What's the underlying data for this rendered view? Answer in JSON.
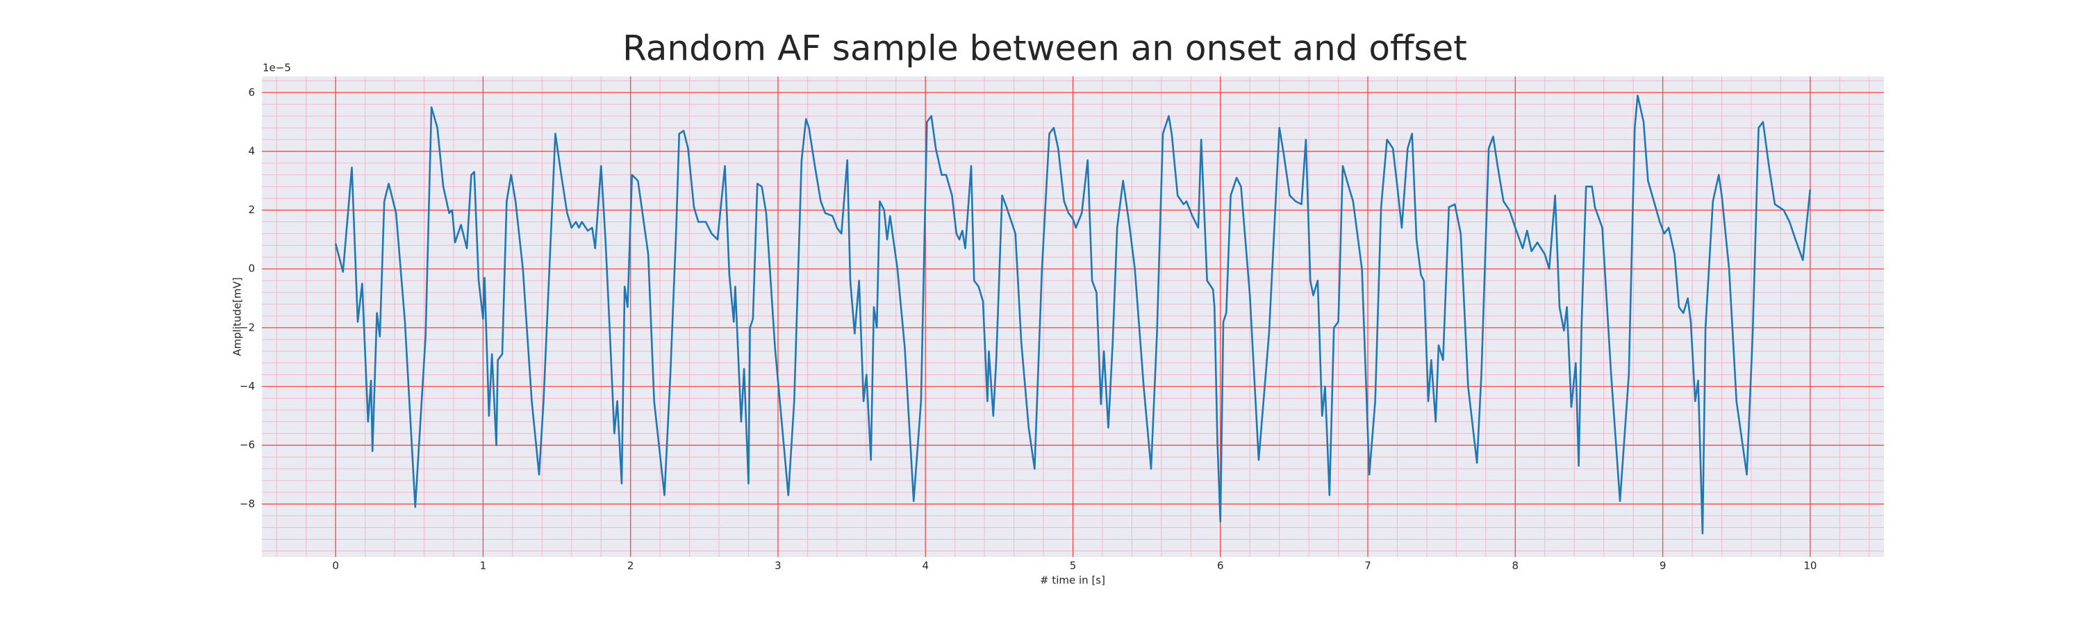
{
  "chart_data": {
    "type": "line",
    "title": "Random AF sample between an onset and offset",
    "xlabel": "# time in [s]",
    "ylabel": "Amplitude[mV]",
    "y_offset_text": "1e−5",
    "xlim": [
      -0.5,
      10.5
    ],
    "ylim": [
      -9.8,
      6.55
    ],
    "xticks": [
      0,
      1,
      2,
      3,
      4,
      5,
      6,
      7,
      8,
      9,
      10
    ],
    "yticks": [
      {
        "value": -8,
        "label": "−8"
      },
      {
        "value": -6,
        "label": "−6"
      },
      {
        "value": -4,
        "label": "−4"
      },
      {
        "value": -2,
        "label": "−2"
      },
      0,
      2,
      4,
      6
    ],
    "xminorticks": [
      -0.4,
      -0.2,
      0,
      0.2,
      0.4,
      0.6,
      0.8,
      1,
      1.2,
      1.4,
      1.6,
      1.8,
      2,
      2.2,
      2.4,
      2.6,
      2.8,
      3,
      3.2,
      3.4,
      3.6,
      3.8,
      4,
      4.2,
      4.4,
      4.6,
      4.8,
      5,
      5.2,
      5.4,
      5.6,
      5.8,
      6,
      6.2,
      6.4,
      6.6,
      6.8,
      7,
      7.2,
      7.4,
      7.6,
      7.8,
      8,
      8.2,
      8.4,
      8.6,
      8.8,
      9,
      9.2,
      9.4,
      9.6,
      9.8,
      10,
      10.2,
      10.4
    ],
    "yminorticks": [
      -9.6,
      -9.2,
      -8.8,
      -8.4,
      -8,
      -7.6,
      -7.2,
      -6.8,
      -6.4,
      -6,
      -5.6,
      -5.2,
      -4.8,
      -4.4,
      -4,
      -3.6,
      -3.2,
      -2.8,
      -2.4,
      -2,
      -1.6,
      -1.2,
      -0.8,
      -0.4,
      0,
      0.4,
      0.8,
      1.2,
      1.6,
      2,
      2.4,
      2.8,
      3.2,
      3.6,
      4,
      4.4,
      4.8,
      5.2,
      5.6,
      6,
      6.4
    ],
    "grid": true,
    "grid_color": "#ff4444",
    "minor_grid_color": "#f4b6c8",
    "background": "#eaeaf2",
    "series": [
      {
        "color": "#1f77b4",
        "x": [
          0,
          0.05,
          0.11,
          0.15,
          0.18,
          0.22,
          0.24,
          0.25,
          0.28,
          0.3,
          0.33,
          0.36,
          0.41,
          0.47,
          0.54,
          0.61,
          0.65,
          0.69,
          0.73,
          0.77,
          0.79,
          0.81,
          0.85,
          0.89,
          0.92,
          0.94,
          0.97,
          1.0,
          1.01,
          1.04,
          1.06,
          1.09,
          1.1,
          1.13,
          1.16,
          1.19,
          1.22,
          1.27,
          1.33,
          1.38,
          1.41,
          1.47,
          1.49,
          1.53,
          1.57,
          1.6,
          1.63,
          1.65,
          1.67,
          1.71,
          1.74,
          1.76,
          1.8,
          1.83,
          1.86,
          1.89,
          1.91,
          1.94,
          1.96,
          1.98,
          2.01,
          2.05,
          2.07,
          2.12,
          2.16,
          2.23,
          2.27,
          2.31,
          2.33,
          2.36,
          2.39,
          2.43,
          2.46,
          2.51,
          2.55,
          2.59,
          2.64,
          2.67,
          2.7,
          2.71,
          2.75,
          2.77,
          2.8,
          2.81,
          2.83,
          2.86,
          2.89,
          2.92,
          2.98,
          3.07,
          3.11,
          3.16,
          3.19,
          3.21,
          3.25,
          3.29,
          3.32,
          3.37,
          3.4,
          3.43,
          3.47,
          3.49,
          3.52,
          3.55,
          3.58,
          3.6,
          3.63,
          3.65,
          3.67,
          3.69,
          3.72,
          3.74,
          3.76,
          3.81,
          3.86,
          3.92,
          3.97,
          4.01,
          4.04,
          4.07,
          4.11,
          4.14,
          4.18,
          4.21,
          4.23,
          4.25,
          4.27,
          4.31,
          4.33,
          4.36,
          4.39,
          4.42,
          4.43,
          4.46,
          4.48,
          4.52,
          4.55,
          4.61,
          4.65,
          4.7,
          4.74,
          4.79,
          4.84,
          4.87,
          4.9,
          4.94,
          4.97,
          5.0,
          5.02,
          5.06,
          5.1,
          5.13,
          5.16,
          5.19,
          5.21,
          5.24,
          5.27,
          5.3,
          5.34,
          5.38,
          5.42,
          5.48,
          5.53,
          5.57,
          5.61,
          5.65,
          5.67,
          5.71,
          5.75,
          5.77,
          5.81,
          5.85,
          5.87,
          5.91,
          5.95,
          5.96,
          5.98,
          6.0,
          6.02,
          6.04,
          6.07,
          6.11,
          6.14,
          6.2,
          6.26,
          6.33,
          6.4,
          6.43,
          6.47,
          6.51,
          6.55,
          6.58,
          6.61,
          6.63,
          6.66,
          6.69,
          6.71,
          6.74,
          6.77,
          6.8,
          6.83,
          6.87,
          6.9,
          6.96,
          7.01,
          7.05,
          7.09,
          7.13,
          7.17,
          7.2,
          7.23,
          7.27,
          7.3,
          7.33,
          7.36,
          7.38,
          7.41,
          7.43,
          7.46,
          7.48,
          7.51,
          7.55,
          7.59,
          7.63,
          7.68,
          7.74,
          7.77,
          7.82,
          7.85,
          7.88,
          7.92,
          7.96,
          8.0,
          8.05,
          8.08,
          8.11,
          8.15,
          8.2,
          8.23,
          8.27,
          8.3,
          8.33,
          8.35,
          8.38,
          8.41,
          8.43,
          8.45,
          8.48,
          8.52,
          8.54,
          8.59,
          8.65,
          8.71,
          8.77,
          8.81,
          8.83,
          8.87,
          8.9,
          8.94,
          8.98,
          9.01,
          9.04,
          9.08,
          9.11,
          9.14,
          9.17,
          9.19,
          9.22,
          9.24,
          9.27,
          9.29,
          9.34,
          9.38,
          9.4,
          9.45,
          9.5,
          9.57,
          9.61,
          9.65,
          9.68,
          9.72,
          9.76,
          9.82,
          9.86,
          9.9,
          9.95,
          10.0
        ],
        "values": [
          0.86,
          -0.1,
          3.45,
          -1.8,
          -0.5,
          -5.2,
          -3.8,
          -6.2,
          -1.5,
          -2.3,
          2.3,
          2.9,
          1.9,
          -1.8,
          -8.1,
          -2.3,
          5.5,
          4.8,
          2.8,
          1.9,
          2,
          0.9,
          1.5,
          0.7,
          3.2,
          3.3,
          -0.4,
          -1.7,
          -0.3,
          -5,
          -2.9,
          -6,
          -3.1,
          -2.9,
          2.3,
          3.2,
          2.3,
          0,
          -4.5,
          -7,
          -4.5,
          2.3,
          4.6,
          3.2,
          1.9,
          1.4,
          1.6,
          1.4,
          1.6,
          1.3,
          1.4,
          0.7,
          3.5,
          1,
          -2.2,
          -5.6,
          -4.5,
          -7.3,
          -0.6,
          -1.3,
          3.2,
          3,
          2.3,
          0.5,
          -4.5,
          -7.7,
          -3.6,
          1.4,
          4.6,
          4.7,
          4.1,
          2.1,
          1.6,
          1.6,
          1.2,
          1,
          3.5,
          -0.2,
          -1.8,
          -0.6,
          -5.2,
          -3.4,
          -7.3,
          -2,
          -1.7,
          2.9,
          2.8,
          1.9,
          -2.7,
          -7.7,
          -4.5,
          3.7,
          5.1,
          4.8,
          3.5,
          2.3,
          1.9,
          1.8,
          1.4,
          1.2,
          3.7,
          -0.4,
          -2.2,
          -0.4,
          -4.5,
          -3.6,
          -6.5,
          -1.3,
          -2,
          2.3,
          2,
          1,
          1.8,
          0,
          -2.7,
          -7.9,
          -4.5,
          5,
          5.2,
          4.1,
          3.2,
          3.2,
          2.5,
          1.2,
          1,
          1.3,
          0.7,
          3.5,
          -0.4,
          -0.6,
          -1.1,
          -4.5,
          -2.8,
          -5,
          -3.1,
          2.5,
          2.1,
          1.2,
          -2.5,
          -5.4,
          -6.8,
          0,
          4.6,
          4.8,
          4.1,
          2.3,
          1.9,
          1.7,
          1.4,
          1.9,
          3.7,
          -0.4,
          -0.8,
          -4.6,
          -2.8,
          -5.4,
          -2.5,
          1.4,
          3,
          1.6,
          0,
          -4,
          -6.8,
          -2.2,
          4.6,
          5.2,
          4.6,
          2.5,
          2.2,
          2.3,
          1.8,
          1.4,
          4.4,
          -0.4,
          -0.7,
          -1.3,
          -5.9,
          -8.6,
          -1.8,
          -1.5,
          2.5,
          3.1,
          2.8,
          -0.9,
          -6.5,
          -2.2,
          4.8,
          3.9,
          2.5,
          2.3,
          2.2,
          4.4,
          -0.4,
          -0.9,
          -0.4,
          -5,
          -4,
          -7.7,
          -2,
          -1.8,
          3.5,
          2.8,
          2.3,
          0,
          -7,
          -4.5,
          2.1,
          4.4,
          4.1,
          2.8,
          1.4,
          4.1,
          4.6,
          1,
          -0.2,
          -0.4,
          -4.5,
          -3.1,
          -5.2,
          -2.6,
          -3.1,
          2.1,
          2.2,
          1.2,
          -4,
          -6.6,
          -3.6,
          4.1,
          4.5,
          3.5,
          2.3,
          2,
          1.4,
          0.7,
          1.3,
          0.6,
          0.9,
          0.5,
          0,
          2.5,
          -1.3,
          -2.1,
          -1.3,
          -4.7,
          -3.2,
          -6.7,
          -1.8,
          2.8,
          2.8,
          2.1,
          1.4,
          -3.6,
          -7.9,
          -3.6,
          4.8,
          5.9,
          5,
          3,
          2.3,
          1.6,
          1.2,
          1.4,
          0.5,
          -1.3,
          -1.5,
          -1,
          -1.8,
          -4.5,
          -3.8,
          -9,
          -2,
          2.3,
          3.2,
          2.5,
          0,
          -4.5,
          -7,
          -2.2,
          4.8,
          5,
          3.5,
          2.2,
          2,
          1.6,
          1,
          0.3,
          2.7
        ]
      }
    ]
  }
}
